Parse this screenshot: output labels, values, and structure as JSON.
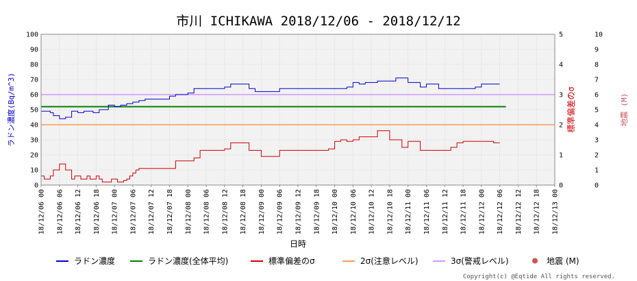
{
  "chart_data": {
    "type": "line",
    "title": "市川 ICHIKAWA 2018/12/06 - 2018/12/12",
    "xlabel": "日時",
    "ylabel_left": "ラドン濃度(Bq/m^3)",
    "ylabel_right_1": "標準偏差のσ",
    "ylabel_right_2": "地震 (M)",
    "ylim_left": [
      0,
      100
    ],
    "ylim_right_1": [
      0,
      5
    ],
    "ylim_right_2": [
      0,
      10
    ],
    "yticks_left": [
      "0",
      "10",
      "20",
      "30",
      "40",
      "50",
      "60",
      "70",
      "80",
      "90",
      "100"
    ],
    "yticks_right_1": [
      "0",
      "1",
      "2",
      "3",
      "4",
      "5"
    ],
    "yticks_right_2": [
      "0",
      "1",
      "2",
      "3",
      "4",
      "5",
      "6",
      "7",
      "8",
      "9",
      "10"
    ],
    "x_tick_labels": [
      "18/12/06 00",
      "18/12/06 06",
      "18/12/06 12",
      "18/12/06 18",
      "18/12/07 00",
      "18/12/07 06",
      "18/12/07 12",
      "18/12/07 18",
      "18/12/08 00",
      "18/12/08 06",
      "18/12/08 12",
      "18/12/08 18",
      "18/12/09 00",
      "18/12/09 06",
      "18/12/09 12",
      "18/12/09 18",
      "18/12/10 00",
      "18/12/10 06",
      "18/12/10 12",
      "18/12/10 18",
      "18/12/11 00",
      "18/12/11 06",
      "18/12/11 12",
      "18/12/11 18",
      "18/12/12 00",
      "18/12/12 06",
      "18/12/12 12",
      "18/12/12 18",
      "18/12/13 00"
    ],
    "x_unit": "hours from 18/12/06 00",
    "x_max": 168,
    "grid": true,
    "legend_position": "bottom",
    "series": [
      {
        "name": "ラドン濃度",
        "axis": "left",
        "color": "#0000cc",
        "x": [
          0,
          2,
          3,
          4,
          5,
          6,
          7,
          8,
          9,
          10,
          11,
          12,
          13,
          14,
          15,
          16,
          17,
          18,
          19,
          20,
          21,
          22,
          23,
          24,
          25,
          26,
          27,
          28,
          29,
          30,
          31,
          32,
          33,
          34,
          36,
          38,
          40,
          42,
          44,
          46,
          48,
          50,
          52,
          54,
          56,
          58,
          60,
          62,
          64,
          66,
          68,
          70,
          72,
          74,
          76,
          78,
          80,
          82,
          84,
          86,
          88,
          90,
          92,
          94,
          96,
          98,
          100,
          102,
          104,
          106,
          108,
          110,
          112,
          114,
          116,
          118,
          120,
          122,
          124,
          126,
          128,
          130,
          132,
          134,
          136,
          138,
          140,
          142,
          144,
          146,
          148,
          150
        ],
        "y": [
          49,
          49,
          48,
          46,
          46,
          44,
          44,
          45,
          45,
          49,
          49,
          48,
          48,
          49,
          49,
          49,
          48,
          48,
          50,
          50,
          50,
          53,
          53,
          52,
          52,
          53,
          53,
          54,
          54,
          55,
          55,
          56,
          56,
          57,
          57,
          57,
          57,
          59,
          60,
          60,
          61,
          64,
          64,
          64,
          64,
          64,
          65,
          67,
          67,
          67,
          64,
          62,
          62,
          62,
          62,
          64,
          64,
          64,
          64,
          64,
          64,
          64,
          64,
          64,
          64,
          64,
          65,
          68,
          67,
          68,
          68,
          69,
          69,
          69,
          71,
          71,
          68,
          68,
          65,
          67,
          67,
          64,
          64,
          64,
          64,
          64,
          64,
          65,
          67,
          67,
          67,
          67
        ]
      },
      {
        "name": "ラドン濃度(全体平均)",
        "axis": "left",
        "color": "#008000",
        "x": [
          0,
          152
        ],
        "y": [
          52,
          52
        ]
      },
      {
        "name": "標準偏差のσ",
        "axis": "right_1",
        "color": "#cc0000",
        "x": [
          0,
          1,
          2,
          3,
          4,
          5,
          6,
          7,
          8,
          9,
          10,
          11,
          12,
          13,
          14,
          15,
          16,
          17,
          18,
          19,
          20,
          21,
          22,
          23,
          24,
          25,
          26,
          27,
          28,
          29,
          30,
          31,
          32,
          36,
          40,
          44,
          48,
          50,
          52,
          54,
          56,
          58,
          60,
          62,
          64,
          66,
          68,
          70,
          72,
          74,
          76,
          78,
          80,
          82,
          84,
          86,
          88,
          90,
          92,
          94,
          96,
          98,
          100,
          102,
          104,
          106,
          108,
          110,
          112,
          114,
          116,
          118,
          120,
          122,
          124,
          126,
          128,
          130,
          132,
          134,
          136,
          138,
          140,
          142,
          144,
          146,
          148,
          150
        ],
        "y": [
          0.3,
          0.2,
          0.2,
          0.3,
          0.5,
          0.5,
          0.7,
          0.7,
          0.5,
          0.5,
          0.2,
          0.3,
          0.3,
          0.2,
          0.2,
          0.3,
          0.2,
          0.2,
          0.3,
          0.2,
          0.1,
          0.1,
          0.1,
          0.2,
          0.2,
          0.1,
          0.1,
          0.15,
          0.2,
          0.3,
          0.4,
          0.5,
          0.55,
          0.55,
          0.55,
          0.8,
          0.8,
          0.9,
          1.15,
          1.15,
          1.15,
          1.15,
          1.2,
          1.4,
          1.4,
          1.4,
          1.15,
          1.15,
          0.95,
          0.95,
          0.95,
          1.15,
          1.15,
          1.15,
          1.15,
          1.15,
          1.15,
          1.15,
          1.15,
          1.2,
          1.45,
          1.5,
          1.45,
          1.5,
          1.6,
          1.6,
          1.6,
          1.8,
          1.8,
          1.5,
          1.5,
          1.25,
          1.45,
          1.45,
          1.15,
          1.15,
          1.15,
          1.15,
          1.15,
          1.25,
          1.4,
          1.45,
          1.45,
          1.45,
          1.45,
          1.45,
          1.4,
          1.4
        ]
      },
      {
        "name": "2σ(注意レベル)",
        "axis": "right_1",
        "color": "#ff9955",
        "x": [
          0,
          168
        ],
        "y": [
          2,
          2
        ]
      },
      {
        "name": "3σ(警戒レベル)",
        "axis": "right_1",
        "color": "#cc99ff",
        "x": [
          0,
          168
        ],
        "y": [
          3,
          3
        ]
      },
      {
        "name": "地震 (M)",
        "axis": "right_2",
        "color": "#cc5555",
        "marker": "dot",
        "x": [],
        "y": []
      }
    ]
  },
  "copyright": "Copyright(c) @Eqtide All rights reserved."
}
